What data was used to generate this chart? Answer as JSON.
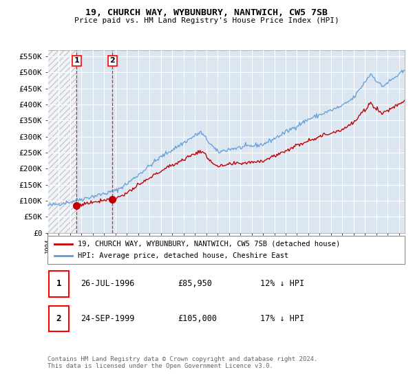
{
  "title1": "19, CHURCH WAY, WYBUNBURY, NANTWICH, CW5 7SB",
  "title2": "Price paid vs. HM Land Registry's House Price Index (HPI)",
  "ylim": [
    0,
    570000
  ],
  "yticks": [
    0,
    50000,
    100000,
    150000,
    200000,
    250000,
    300000,
    350000,
    400000,
    450000,
    500000,
    550000
  ],
  "ytick_labels": [
    "£0",
    "£50K",
    "£100K",
    "£150K",
    "£200K",
    "£250K",
    "£300K",
    "£350K",
    "£400K",
    "£450K",
    "£500K",
    "£550K"
  ],
  "hpi_color": "#5b9bd5",
  "price_color": "#c00000",
  "plot_bg": "#dce6f1",
  "grid_color": "#ffffff",
  "hatch_color": "#c0c0c0",
  "between_color": "#dce6f1",
  "transaction1_x": 1996.57,
  "transaction1_y": 85950,
  "transaction2_x": 1999.73,
  "transaction2_y": 105000,
  "legend_line1": "19, CHURCH WAY, WYBUNBURY, NANTWICH, CW5 7SB (detached house)",
  "legend_line2": "HPI: Average price, detached house, Cheshire East",
  "table_row1": [
    "1",
    "26-JUL-1996",
    "£85,950",
    "12% ↓ HPI"
  ],
  "table_row2": [
    "2",
    "24-SEP-1999",
    "£105,000",
    "17% ↓ HPI"
  ],
  "footer": "Contains HM Land Registry data © Crown copyright and database right 2024.\nThis data is licensed under the Open Government Licence v3.0.",
  "xmin": 1994,
  "xmax": 2025.5
}
